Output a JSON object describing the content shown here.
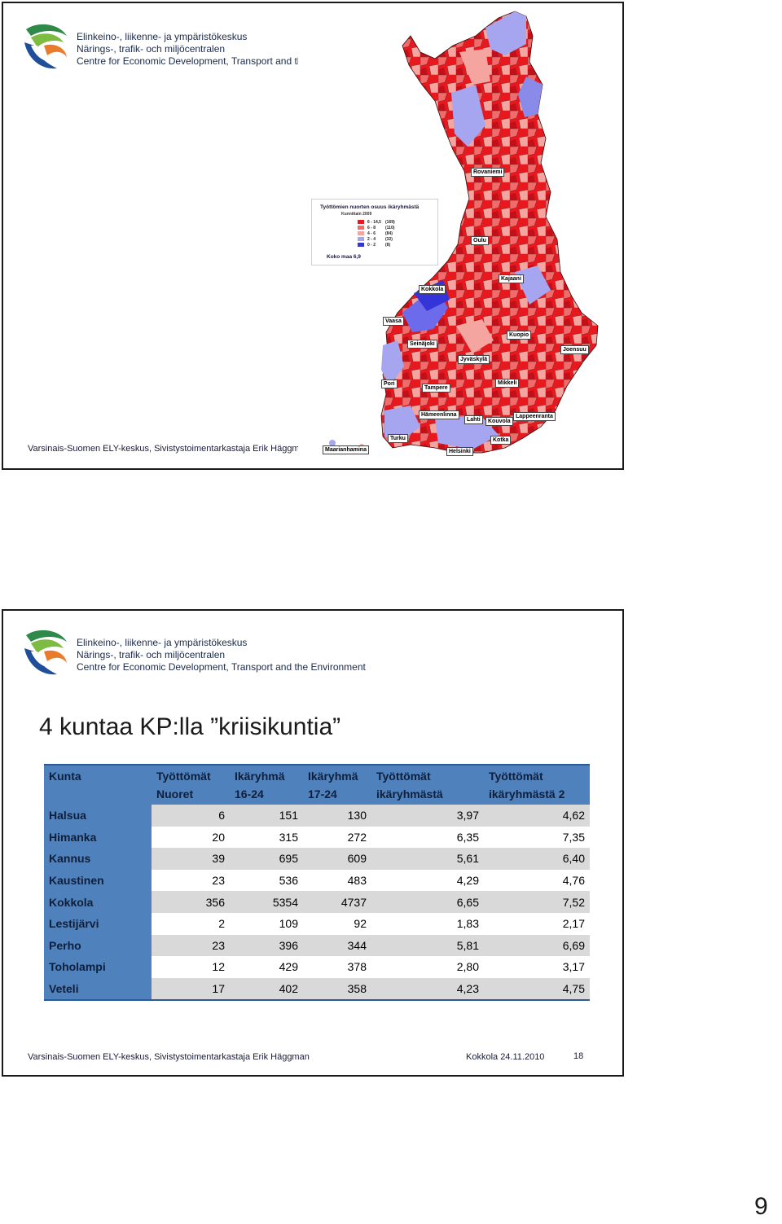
{
  "org": {
    "line1": "Elinkeino-, liikenne- ja ympäristökeskus",
    "line2": "Närings-, trafik- och miljöcentralen",
    "line3": "Centre for Economic Development, Transport and the Environment"
  },
  "slide1": {
    "legend": {
      "title": "Työttömien nuorten osuus ikäryhmästä",
      "subtitle": "Kunnittain 2009",
      "rows": [
        {
          "range": "6 - 14,5",
          "count": "(169)",
          "color": "#e8181f"
        },
        {
          "range": "6 - 8",
          "count": "(110)",
          "color": "#f26b6b"
        },
        {
          "range": "4 - 6",
          "count": "(84)",
          "color": "#f4a5a0"
        },
        {
          "range": "2 - 4",
          "count": "(32)",
          "color": "#a6a6f0"
        },
        {
          "range": "0 - 2",
          "count": "(8)",
          "color": "#3434d8"
        }
      ],
      "total": "Koko maa 6,9"
    },
    "cities": [
      "Rovaniemi",
      "Oulu",
      "Kajaani",
      "Kokkola",
      "Vaasa",
      "Kuopio",
      "Joensuu",
      "Seinäjoki",
      "Jyväskylä",
      "Pori",
      "Tampere",
      "Mikkeli",
      "Hämeenlinna",
      "Lahti",
      "Kouvola",
      "Lappeenranta",
      "Turku",
      "Kotka",
      "Maarianhamina",
      "Helsinki"
    ],
    "footer_author": "Varsinais-Suomen ELY-keskus, Sivistystoimentarkastaja Erik Häggman"
  },
  "slide2": {
    "title": "4 kuntaa KP:lla ”kriisikuntia”",
    "table": {
      "headers": [
        {
          "l1": "Kunta",
          "l2": ""
        },
        {
          "l1": "Työttömät",
          "l2": "Nuoret"
        },
        {
          "l1": "Ikäryhmä",
          "l2": "16-24"
        },
        {
          "l1": "Ikäryhmä",
          "l2": "17-24"
        },
        {
          "l1": "Työttömät",
          "l2": "ikäryhmästä"
        },
        {
          "l1": "Työttömät",
          "l2": "ikäryhmästä 2"
        }
      ],
      "rows": [
        [
          "Halsua",
          "6",
          "151",
          "130",
          "3,97",
          "4,62"
        ],
        [
          "Himanka",
          "20",
          "315",
          "272",
          "6,35",
          "7,35"
        ],
        [
          "Kannus",
          "39",
          "695",
          "609",
          "5,61",
          "6,40"
        ],
        [
          "Kaustinen",
          "23",
          "536",
          "483",
          "4,29",
          "4,76"
        ],
        [
          "Kokkola",
          "356",
          "5354",
          "4737",
          "6,65",
          "7,52"
        ],
        [
          "Lestijärvi",
          "2",
          "109",
          "92",
          "1,83",
          "2,17"
        ],
        [
          "Perho",
          "23",
          "396",
          "344",
          "5,81",
          "6,69"
        ],
        [
          "Toholampi",
          "12",
          "429",
          "378",
          "2,80",
          "3,17"
        ],
        [
          "Veteli",
          "17",
          "402",
          "358",
          "4,23",
          "4,75"
        ]
      ]
    },
    "footer_author": "Varsinais-Suomen ELY-keskus, Sivistystoimentarkastaja Erik Häggman",
    "footer_date": "Kokkola 24.11.2010",
    "footer_page": "18"
  },
  "page_number": "9"
}
